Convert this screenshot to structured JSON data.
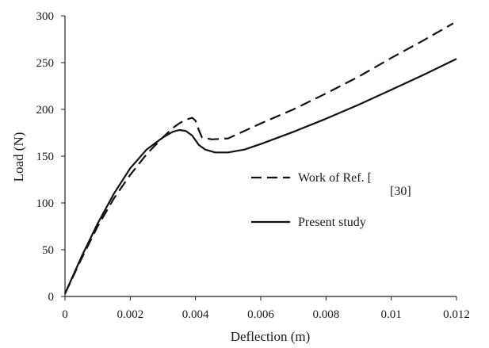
{
  "chart_data": {
    "type": "line",
    "xlabel": "Deflection (m)",
    "ylabel": "Load (N)",
    "xlim": [
      0,
      0.012
    ],
    "ylim": [
      0,
      300
    ],
    "x_ticks": [
      0,
      0.002,
      0.004,
      0.006,
      0.008,
      0.01,
      0.012
    ],
    "x_tick_labels": [
      "0",
      "0.002",
      "0.004",
      "0.006",
      "0.008",
      "0.01",
      "0.012"
    ],
    "y_ticks": [
      0,
      50,
      100,
      150,
      200,
      250,
      300
    ],
    "y_tick_labels": [
      "0",
      "50",
      "100",
      "150",
      "200",
      "250",
      "300"
    ],
    "grid": false,
    "legend_position": "center-right",
    "series": [
      {
        "name": "Work of Ref. [30]",
        "style": "dashed",
        "color": "#111111",
        "x": [
          0,
          0.0005,
          0.001,
          0.0015,
          0.002,
          0.0025,
          0.003,
          0.0033,
          0.0035,
          0.0037,
          0.0039,
          0.004,
          0.0041,
          0.0042,
          0.0045,
          0.005,
          0.006,
          0.007,
          0.008,
          0.009,
          0.01,
          0.011,
          0.0119
        ],
        "y": [
          3,
          40,
          75,
          105,
          130,
          152,
          170,
          180,
          185,
          189,
          191,
          188,
          178,
          170,
          168,
          169,
          185,
          200,
          217,
          235,
          255,
          274,
          292
        ]
      },
      {
        "name": "Present study",
        "style": "solid",
        "color": "#111111",
        "x": [
          0,
          0.0005,
          0.001,
          0.0015,
          0.002,
          0.0025,
          0.003,
          0.0033,
          0.0035,
          0.0037,
          0.0039,
          0.0041,
          0.0043,
          0.0046,
          0.005,
          0.0055,
          0.006,
          0.007,
          0.008,
          0.009,
          0.01,
          0.011,
          0.012
        ],
        "y": [
          3,
          42,
          78,
          110,
          137,
          157,
          170,
          176,
          178,
          177,
          172,
          162,
          157,
          154,
          154,
          157,
          163,
          176,
          190,
          205,
          221,
          237,
          254
        ]
      }
    ],
    "legend_entries": [
      "Work of Ref. [",
      "Present study"
    ],
    "annotations": [
      "[30]"
    ]
  }
}
